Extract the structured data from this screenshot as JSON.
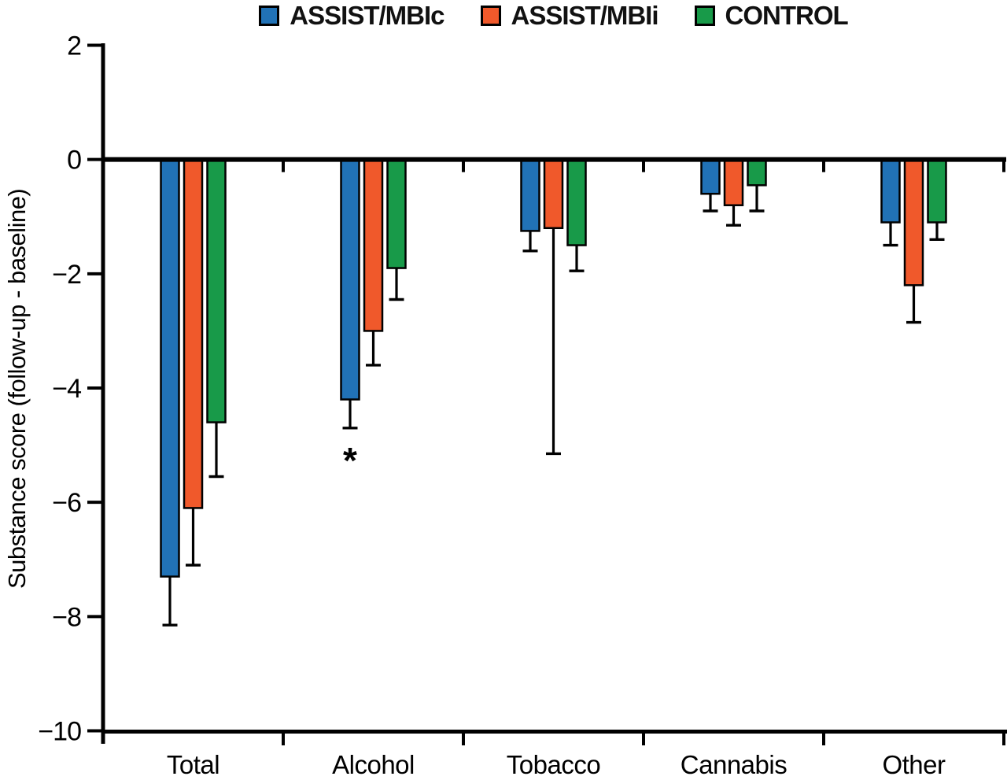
{
  "figure": {
    "ylabel": "Substance score (follow-up - baseline)"
  },
  "chart_data": {
    "type": "bar",
    "title": "",
    "xlabel": "",
    "ylabel": "Substance score (follow-up - baseline)",
    "ylim": [
      -10,
      2
    ],
    "yticks": [
      2,
      0,
      -2,
      -4,
      -6,
      -8,
      -10
    ],
    "grid": false,
    "legend_position": "top",
    "error_bars": "downward whiskers with caps",
    "categories": [
      "Total",
      "Alcohol",
      "Tobacco",
      "Cannabis",
      "Other"
    ],
    "series": [
      {
        "name": "ASSIST/MBIc",
        "color": "#2172B6",
        "values": [
          -7.3,
          -4.2,
          -1.25,
          -0.6,
          -1.1
        ],
        "error": [
          0.85,
          0.5,
          0.35,
          0.3,
          0.4
        ]
      },
      {
        "name": "ASSIST/MBIi",
        "color": "#F0592B",
        "values": [
          -6.1,
          -3.0,
          -1.2,
          -0.8,
          -2.2
        ],
        "error": [
          1.0,
          0.6,
          3.95,
          0.35,
          0.65
        ]
      },
      {
        "name": "CONTROL",
        "color": "#189A49",
        "values": [
          -4.6,
          -1.9,
          -1.5,
          -0.45,
          -1.1
        ],
        "error": [
          0.95,
          0.55,
          0.45,
          0.45,
          0.3
        ]
      }
    ],
    "annotations": [
      {
        "text": "*",
        "series": "ASSIST/MBIc",
        "category": "Alcohol"
      }
    ]
  }
}
